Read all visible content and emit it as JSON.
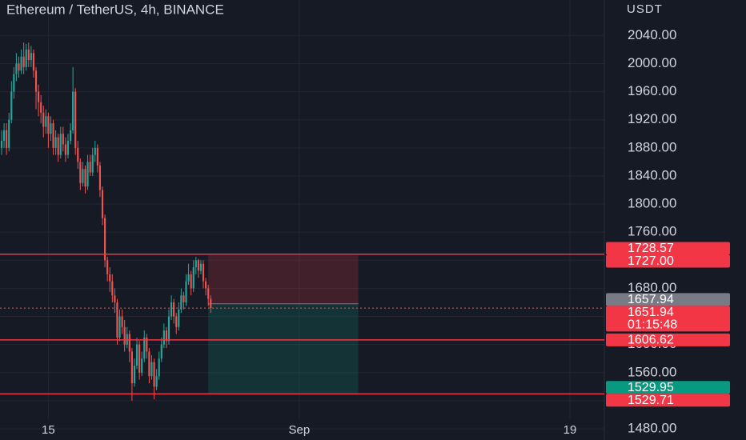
{
  "chart_data": {
    "type": "candlestick",
    "title": "Ethereum / TetherUS, 4h, BINANCE",
    "y_axis_label": "USDT",
    "up_color": "#26a69a",
    "down_color": "#ef5350",
    "open": [
      1880,
      1890,
      1905,
      1880,
      1920,
      1960,
      1985,
      2000,
      1990,
      2010,
      1995,
      2020,
      2005,
      2015,
      1990,
      1960,
      1945,
      1930,
      1910,
      1925,
      1900,
      1915,
      1880,
      1895,
      1870,
      1900,
      1885,
      1870,
      1890,
      1905,
      1960,
      1880,
      1860,
      1830,
      1850,
      1825,
      1860,
      1845,
      1870,
      1880,
      1855,
      1820,
      1780,
      1720,
      1700,
      1690,
      1670,
      1660,
      1610,
      1640,
      1625,
      1600,
      1615,
      1590,
      1545,
      1570,
      1600,
      1560,
      1580,
      1610,
      1590,
      1555,
      1575,
      1540,
      1555,
      1580,
      1600,
      1620,
      1605,
      1640,
      1660,
      1640,
      1625,
      1650,
      1670,
      1660,
      1690,
      1700,
      1680,
      1710,
      1720,
      1705,
      1715,
      1690,
      1680,
      1665
    ],
    "high": [
      1905,
      1915,
      1915,
      1930,
      1975,
      1995,
      2015,
      2010,
      2020,
      2030,
      2028,
      2030,
      2025,
      2020,
      1995,
      1970,
      1955,
      1940,
      1935,
      1930,
      1925,
      1920,
      1905,
      1900,
      1910,
      1910,
      1895,
      1900,
      1915,
      1995,
      1965,
      1890,
      1865,
      1860,
      1855,
      1870,
      1870,
      1880,
      1890,
      1885,
      1860,
      1825,
      1785,
      1725,
      1710,
      1700,
      1680,
      1665,
      1650,
      1650,
      1635,
      1625,
      1620,
      1595,
      1580,
      1610,
      1605,
      1590,
      1620,
      1615,
      1595,
      1585,
      1580,
      1565,
      1590,
      1610,
      1630,
      1625,
      1650,
      1670,
      1665,
      1645,
      1660,
      1680,
      1675,
      1700,
      1715,
      1705,
      1720,
      1725,
      1722,
      1720,
      1720,
      1695,
      1685,
      1670
    ],
    "low": [
      1870,
      1880,
      1870,
      1875,
      1915,
      1950,
      1975,
      1980,
      1985,
      1985,
      1990,
      1995,
      1995,
      1980,
      1935,
      1925,
      1915,
      1895,
      1900,
      1880,
      1890,
      1870,
      1870,
      1860,
      1865,
      1875,
      1860,
      1865,
      1885,
      1900,
      1870,
      1850,
      1820,
      1825,
      1815,
      1820,
      1840,
      1840,
      1860,
      1845,
      1810,
      1770,
      1710,
      1690,
      1675,
      1660,
      1645,
      1600,
      1605,
      1615,
      1590,
      1595,
      1575,
      1520,
      1540,
      1565,
      1550,
      1555,
      1575,
      1580,
      1545,
      1550,
      1522,
      1535,
      1550,
      1575,
      1595,
      1595,
      1600,
      1635,
      1630,
      1615,
      1620,
      1645,
      1650,
      1655,
      1685,
      1670,
      1675,
      1700,
      1695,
      1700,
      1680,
      1670,
      1655,
      1645
    ],
    "close": [
      1890,
      1905,
      1880,
      1920,
      1960,
      1985,
      2000,
      1990,
      2010,
      1995,
      2020,
      2005,
      2015,
      1990,
      1960,
      1945,
      1930,
      1910,
      1925,
      1900,
      1915,
      1880,
      1895,
      1870,
      1900,
      1885,
      1870,
      1890,
      1905,
      1960,
      1880,
      1860,
      1830,
      1850,
      1825,
      1860,
      1845,
      1870,
      1880,
      1855,
      1820,
      1780,
      1720,
      1700,
      1690,
      1670,
      1660,
      1610,
      1640,
      1625,
      1600,
      1615,
      1590,
      1545,
      1570,
      1600,
      1560,
      1580,
      1610,
      1590,
      1555,
      1575,
      1540,
      1555,
      1580,
      1600,
      1620,
      1605,
      1640,
      1660,
      1640,
      1625,
      1650,
      1670,
      1660,
      1690,
      1700,
      1680,
      1710,
      1720,
      1705,
      1715,
      1690,
      1680,
      1665,
      1651.94
    ],
    "xlim": [
      0,
      245
    ],
    "xticks": [
      {
        "value": 19,
        "label": "15"
      },
      {
        "value": 121,
        "label": "Sep"
      },
      {
        "value": 231,
        "label": "19"
      }
    ],
    "ylim": [
      1464.1,
      2090.5
    ],
    "yticks": [
      {
        "value": 1480,
        "label": "1480.00"
      },
      {
        "value": 1520,
        "label": "1520.00"
      },
      {
        "value": 1560,
        "label": "1560.00"
      },
      {
        "value": 1600,
        "label": "1600.00"
      },
      {
        "value": 1640,
        "label": "1640.00"
      },
      {
        "value": 1680,
        "label": "1680.00"
      },
      {
        "value": 1720,
        "label": "1720.00"
      },
      {
        "value": 1760,
        "label": "1760.00"
      },
      {
        "value": 1800,
        "label": "1800.00"
      },
      {
        "value": 1840,
        "label": "1840.00"
      },
      {
        "value": 1880,
        "label": "1880.00"
      },
      {
        "value": 1920,
        "label": "1920.00"
      },
      {
        "value": 1960,
        "label": "1960.00"
      },
      {
        "value": 2000,
        "label": "2000.00"
      },
      {
        "value": 2040,
        "label": "2040.00"
      }
    ],
    "grid": true,
    "horizontal_lines": [
      1728.57,
      1606.62,
      1529.71
    ],
    "line_color": "#f23645",
    "position": {
      "x_start": 84,
      "x_end": 145,
      "entry": 1657.94,
      "stop": 1727,
      "target": 1529.95
    },
    "current_price": 1651.94,
    "price_labels": [
      {
        "value": 1728.57,
        "color": "#f23645"
      },
      {
        "value": 1727,
        "label": "1727.00",
        "color": "#f23645"
      },
      {
        "value": 1657.94,
        "color": "#787b86"
      },
      {
        "value": 1651.94,
        "color": "#f23645",
        "countdown": "01:15:48"
      },
      {
        "value": 1606.62,
        "color": "#f23645"
      },
      {
        "value": 1529.95,
        "color": "#089981"
      },
      {
        "value": 1529.71,
        "color": "#f23645"
      }
    ]
  }
}
